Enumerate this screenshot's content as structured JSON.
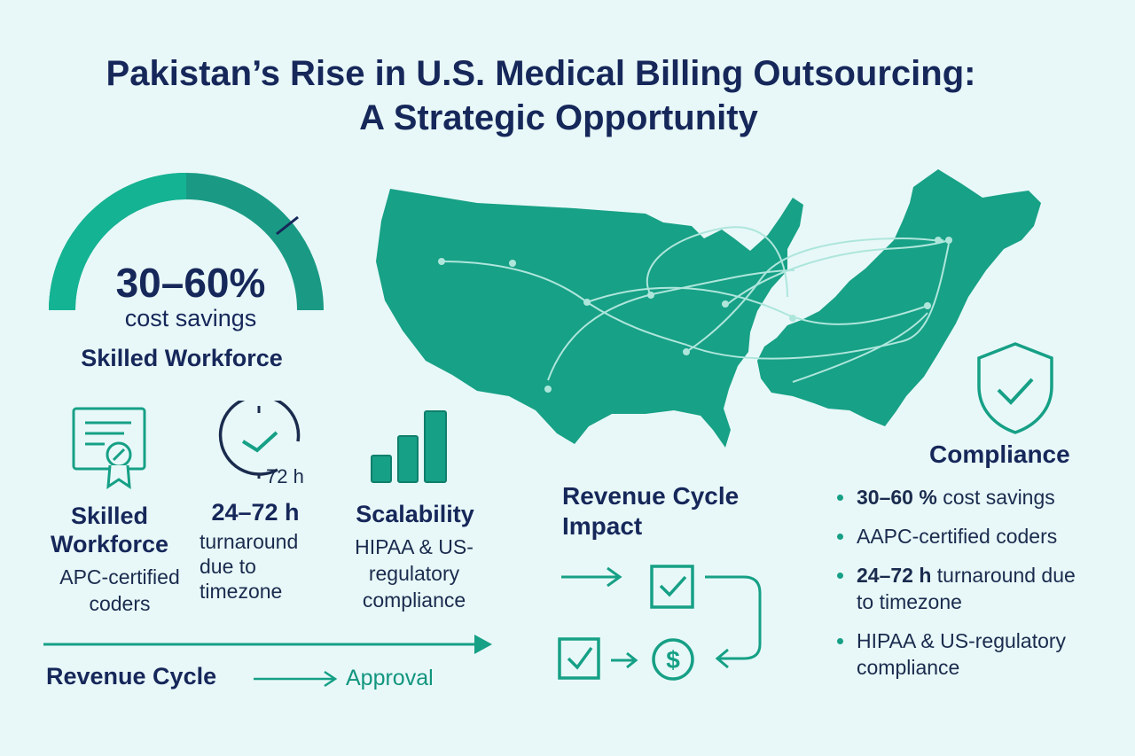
{
  "header": {
    "title_line1": "Pakistan’s Rise in U.S. Medical Billing Outsourcing:",
    "title_line2": "A Strategic Opportunity"
  },
  "colors": {
    "background": "#e8f8f8",
    "accent": "#16a086",
    "accent_dark": "#0f7f6c",
    "text": "#16275a"
  },
  "gauge": {
    "value_label": "30–60%",
    "caption": "cost savings",
    "heading": "Skilled Workforce",
    "fill_fraction": 0.5,
    "icon": "semicircle-gauge"
  },
  "features": [
    {
      "icon": "certificate-icon",
      "title": "Skilled Workforce",
      "desc": "APC-certified coders"
    },
    {
      "icon": "clock-icon",
      "icon_text": "72 h",
      "title": "24–72 h",
      "desc": "turnaround due to timezone"
    },
    {
      "icon": "bar-chart-icon",
      "title": "Scalability",
      "desc": "HIPAA & US-regulatory compliance"
    }
  ],
  "flow": {
    "revenue_cycle": "Revenue Cycle",
    "approval": "Approval"
  },
  "impact": {
    "title": "Revenue Cycle Impact",
    "icons": [
      "arrow-right-icon",
      "check-box-icon",
      "dollar-circle-icon",
      "curved-arrow-icon"
    ]
  },
  "map": {
    "icon": "us-pakistan-map",
    "description_regions": [
      "United States",
      "Pakistan"
    ]
  },
  "compliance": {
    "title": "Compliance",
    "icon": "shield-check-icon",
    "items": [
      {
        "bold": "30–60 %",
        "text": " cost savings"
      },
      {
        "bold": "",
        "text": "AAPC-certified coders"
      },
      {
        "bold": "24–72 h",
        "text": " turnaround due to timezone"
      },
      {
        "bold": "",
        "text": "HIPAA & US-regulatory compliance"
      }
    ]
  }
}
